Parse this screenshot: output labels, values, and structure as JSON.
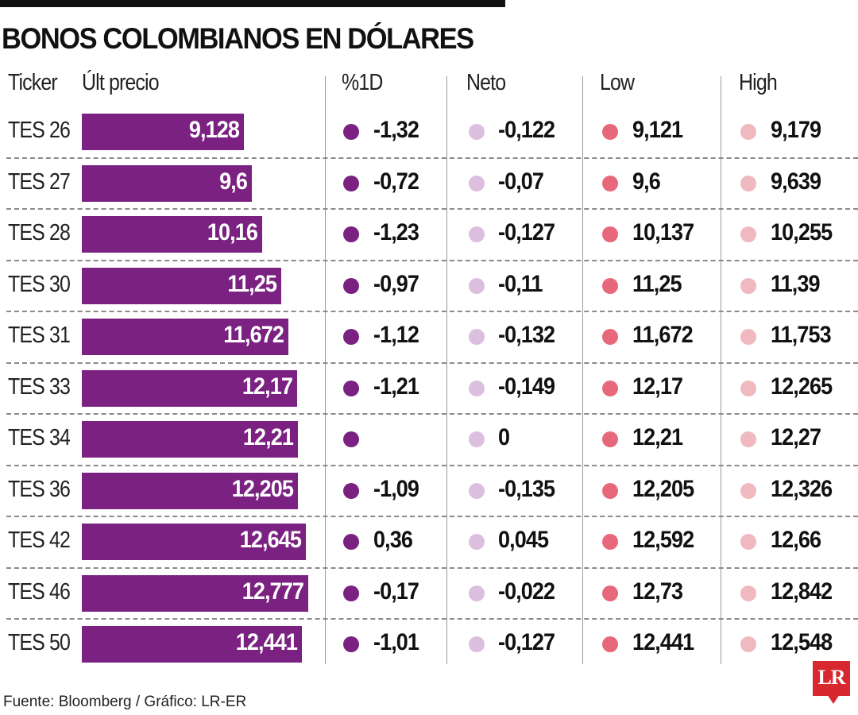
{
  "title": "BONOS COLOMBIANOS EN DÓLARES",
  "source": "Fuente: Bloomberg / Gráfico: LR-ER",
  "logo": "LR",
  "colors": {
    "bar": "#7a2181",
    "pct1d_dot": "#7a2181",
    "neto_dot": "#dcbedf",
    "low_dot": "#e8687b",
    "high_dot": "#f0b9bf"
  },
  "headers": {
    "ticker": "Ticker",
    "price": "Últ precio",
    "pct1d": "%1D",
    "neto": "Neto",
    "low": "Low",
    "high": "High"
  },
  "chart_data": {
    "type": "bar",
    "orientation": "horizontal",
    "title": "BONOS COLOMBIANOS EN DÓLARES",
    "xlim": [
      0,
      14
    ],
    "categories": [
      "TES 26",
      "TES 27",
      "TES 28",
      "TES 30",
      "TES 31",
      "TES 33",
      "TES 34",
      "TES 36",
      "TES 42",
      "TES 46",
      "TES 50"
    ],
    "rows": [
      {
        "ticker": "TES 26",
        "price": 9.128,
        "price_label": "9,128",
        "pct1d": "-1,32",
        "neto": "-0,122",
        "low": "9,121",
        "high": "9,179"
      },
      {
        "ticker": "TES 27",
        "price": 9.6,
        "price_label": "9,6",
        "pct1d": "-0,72",
        "neto": "-0,07",
        "low": "9,6",
        "high": "9,639"
      },
      {
        "ticker": "TES 28",
        "price": 10.16,
        "price_label": "10,16",
        "pct1d": "-1,23",
        "neto": "-0,127",
        "low": "10,137",
        "high": "10,255"
      },
      {
        "ticker": "TES 30",
        "price": 11.25,
        "price_label": "11,25",
        "pct1d": "-0,97",
        "neto": "-0,11",
        "low": "11,25",
        "high": "11,39"
      },
      {
        "ticker": "TES 31",
        "price": 11.672,
        "price_label": "11,672",
        "pct1d": "-1,12",
        "neto": "-0,132",
        "low": "11,672",
        "high": "11,753"
      },
      {
        "ticker": "TES 33",
        "price": 12.17,
        "price_label": "12,17",
        "pct1d": "-1,21",
        "neto": "-0,149",
        "low": "12,17",
        "high": "12,265"
      },
      {
        "ticker": "TES 34",
        "price": 12.21,
        "price_label": "12,21",
        "pct1d": "",
        "neto": "0",
        "low": "12,21",
        "high": "12,27"
      },
      {
        "ticker": "TES 36",
        "price": 12.205,
        "price_label": "12,205",
        "pct1d": "-1,09",
        "neto": "-0,135",
        "low": "12,205",
        "high": "12,326"
      },
      {
        "ticker": "TES 42",
        "price": 12.645,
        "price_label": "12,645",
        "pct1d": "0,36",
        "neto": "0,045",
        "low": "12,592",
        "high": "12,66"
      },
      {
        "ticker": "TES 46",
        "price": 12.777,
        "price_label": "12,777",
        "pct1d": "-0,17",
        "neto": "-0,022",
        "low": "12,73",
        "high": "12,842"
      },
      {
        "ticker": "TES 50",
        "price": 12.441,
        "price_label": "12,441",
        "pct1d": "-1,01",
        "neto": "-0,127",
        "low": "12,441",
        "high": "12,548"
      }
    ]
  }
}
